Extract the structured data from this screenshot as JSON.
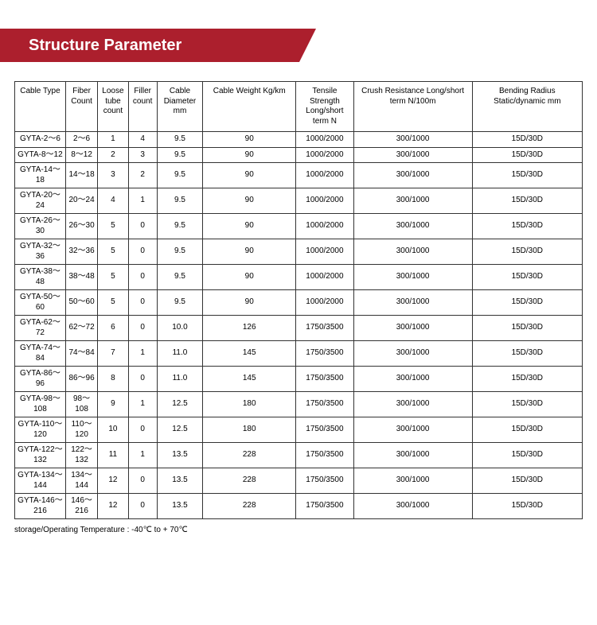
{
  "header": {
    "title": "Structure Parameter"
  },
  "table": {
    "columns": [
      "Cable Type",
      "Fiber Count",
      "Loose tube count",
      "Filler count",
      "Cable Diameter mm",
      "Cable Weight     Kg/km",
      "Tensile Strength Long/short term N",
      "Crush Resistance   Long/short term N/100m",
      "Bending Radius Static/dynamic mm"
    ],
    "rows": [
      [
        "GYTA-2～6",
        "2～6",
        "1",
        "4",
        "9.5",
        "90",
        "1000/2000",
        "300/1000",
        "15D/30D"
      ],
      [
        "GYTA-8～12",
        "8～12",
        "2",
        "3",
        "9.5",
        "90",
        "1000/2000",
        "300/1000",
        "15D/30D"
      ],
      [
        "GYTA-14～18",
        "14～18",
        "3",
        "2",
        "9.5",
        "90",
        "1000/2000",
        "300/1000",
        "15D/30D"
      ],
      [
        "GYTA-20～24",
        "20～24",
        "4",
        "1",
        "9.5",
        "90",
        "1000/2000",
        "300/1000",
        "15D/30D"
      ],
      [
        "GYTA-26～30",
        "26～30",
        "5",
        "0",
        "9.5",
        "90",
        "1000/2000",
        "300/1000",
        "15D/30D"
      ],
      [
        "GYTA-32～36",
        "32～36",
        "5",
        "0",
        "9.5",
        "90",
        "1000/2000",
        "300/1000",
        "15D/30D"
      ],
      [
        "GYTA-38～48",
        "38～48",
        "5",
        "0",
        "9.5",
        "90",
        "1000/2000",
        "300/1000",
        "15D/30D"
      ],
      [
        "GYTA-50～60",
        "50～60",
        "5",
        "0",
        "9.5",
        "90",
        "1000/2000",
        "300/1000",
        "15D/30D"
      ],
      [
        "GYTA-62～72",
        "62～72",
        "6",
        "0",
        "10.0",
        "126",
        "1750/3500",
        "300/1000",
        "15D/30D"
      ],
      [
        "GYTA-74～84",
        "74～84",
        "7",
        "1",
        "11.0",
        "145",
        "1750/3500",
        "300/1000",
        "15D/30D"
      ],
      [
        "GYTA-86～96",
        "86～96",
        "8",
        "0",
        "11.0",
        "145",
        "1750/3500",
        "300/1000",
        "15D/30D"
      ],
      [
        "GYTA-98～108",
        "98～108",
        "9",
        "1",
        "12.5",
        "180",
        "1750/3500",
        "300/1000",
        "15D/30D"
      ],
      [
        "GYTA-110～120",
        "110～120",
        "10",
        "0",
        "12.5",
        "180",
        "1750/3500",
        "300/1000",
        "15D/30D"
      ],
      [
        "GYTA-122～132",
        "122～132",
        "11",
        "1",
        "13.5",
        "228",
        "1750/3500",
        "300/1000",
        "15D/30D"
      ],
      [
        "GYTA-134～144",
        "134～144",
        "12",
        "0",
        "13.5",
        "228",
        "1750/3500",
        "300/1000",
        "15D/30D"
      ],
      [
        "GYTA-146～216",
        "146～216",
        "12",
        "0",
        "13.5",
        "228",
        "1750/3500",
        "300/1000",
        "15D/30D"
      ]
    ]
  },
  "footnote": "storage/Operating Temperature : -40℃ to + 70℃"
}
